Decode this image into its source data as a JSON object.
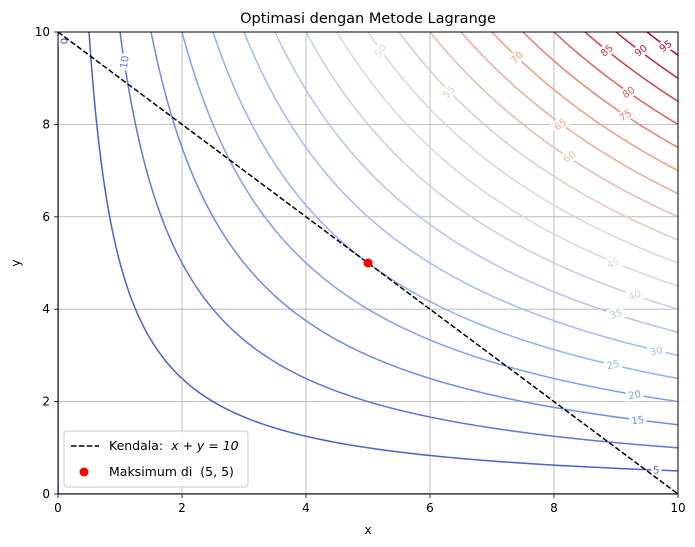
{
  "chart_data": {
    "type": "line",
    "title": "Optimasi dengan Metode Lagrange",
    "xlabel": "x",
    "ylabel": "y",
    "xlim": [
      0,
      10
    ],
    "ylim": [
      0,
      10
    ],
    "grid": true,
    "xticks": [
      "0",
      "2",
      "4",
      "6",
      "8",
      "10"
    ],
    "yticks": [
      "0",
      "2",
      "4",
      "6",
      "8",
      "10"
    ],
    "contour_function": "x*y",
    "colormap": "coolwarm",
    "contour_levels": [
      0,
      5,
      10,
      15,
      20,
      25,
      30,
      35,
      40,
      45,
      50,
      55,
      60,
      65,
      70,
      75,
      80,
      85,
      90,
      95
    ],
    "contour_labels": [
      {
        "level": 0,
        "text": "0",
        "x": 0.1,
        "y": 9.8
      },
      {
        "level": 5,
        "text": "5",
        "x": 9.65,
        "y": 0.52
      },
      {
        "level": 10,
        "text": "10",
        "x": 1.07,
        "y": 9.35
      },
      {
        "level": 15,
        "text": "15",
        "x": 9.35,
        "y": 1.6
      },
      {
        "level": 20,
        "text": "20",
        "x": 9.3,
        "y": 2.15
      },
      {
        "level": 25,
        "text": "25",
        "x": 8.95,
        "y": 2.8
      },
      {
        "level": 30,
        "text": "30",
        "x": 9.65,
        "y": 3.1
      },
      {
        "level": 35,
        "text": "35",
        "x": 9.0,
        "y": 3.9
      },
      {
        "level": 40,
        "text": "40",
        "x": 9.3,
        "y": 4.3
      },
      {
        "level": 45,
        "text": "45",
        "x": 8.95,
        "y": 5.0
      },
      {
        "level": 50,
        "text": "50",
        "x": 5.2,
        "y": 9.6
      },
      {
        "level": 55,
        "text": "55",
        "x": 6.3,
        "y": 8.7
      },
      {
        "level": 60,
        "text": "60",
        "x": 8.25,
        "y": 7.3
      },
      {
        "level": 65,
        "text": "65",
        "x": 8.1,
        "y": 8.0
      },
      {
        "level": 70,
        "text": "70",
        "x": 7.4,
        "y": 9.45
      },
      {
        "level": 75,
        "text": "75",
        "x": 9.15,
        "y": 8.2
      },
      {
        "level": 80,
        "text": "80",
        "x": 9.2,
        "y": 8.7
      },
      {
        "level": 85,
        "text": "85",
        "x": 8.85,
        "y": 9.6
      },
      {
        "level": 90,
        "text": "90",
        "x": 9.4,
        "y": 9.6
      },
      {
        "level": 95,
        "text": "95",
        "x": 9.8,
        "y": 9.7
      }
    ],
    "series": [
      {
        "name": "Kendala: x + y = 10",
        "style": "dashed",
        "color": "#000000",
        "x": [
          0,
          10
        ],
        "y": [
          10,
          0
        ]
      },
      {
        "name": "Maksimum di (5, 5)",
        "style": "point",
        "color": "#ff0000",
        "x": [
          5
        ],
        "y": [
          5
        ]
      }
    ],
    "legend": {
      "placement": "lower-left",
      "entries": [
        {
          "prefix": "Kendala: ",
          "math": "x + y = 10"
        },
        {
          "prefix": "Maksimum di ",
          "math": "(5, 5)"
        }
      ]
    }
  }
}
